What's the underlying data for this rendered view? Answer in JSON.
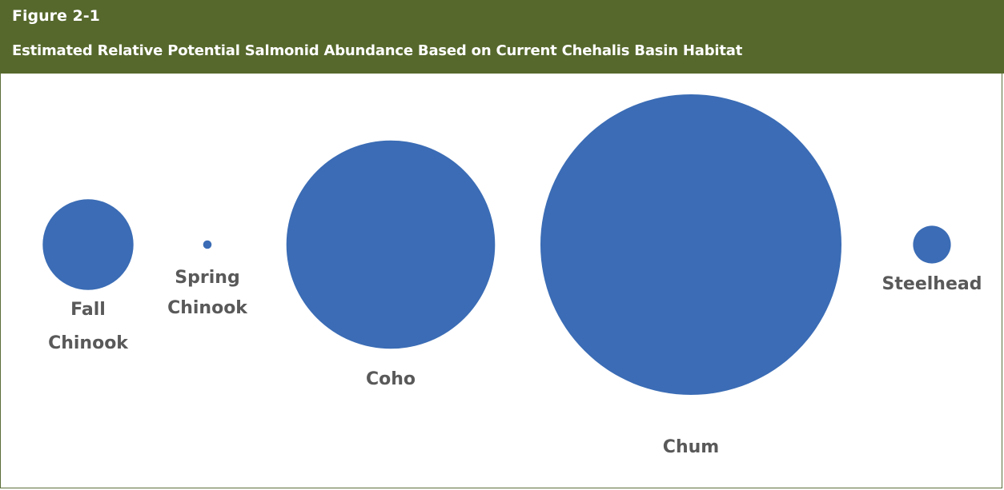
{
  "figure_number": "Figure 2-1",
  "chart_data": {
    "type": "bubble",
    "title": "Estimated Relative Potential Salmonid Abundance Based on Current Chehalis Basin Habitat",
    "series_color": "#3b6cb5",
    "bubbles": [
      {
        "label": [
          "Fall",
          "Chinook"
        ],
        "relative_size": 0.0908
      },
      {
        "label": [
          "Spring",
          "Chinook"
        ],
        "relative_size": 0.0008
      },
      {
        "label": [
          "Coho"
        ],
        "relative_size": 0.4806
      },
      {
        "label": [
          "Chum"
        ],
        "relative_size": 1.0
      },
      {
        "label": [
          "Steelhead"
        ],
        "relative_size": 0.0158
      }
    ]
  }
}
